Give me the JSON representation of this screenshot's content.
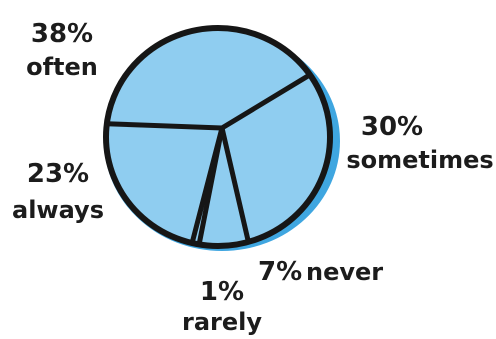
{
  "chart_data": {
    "type": "pie",
    "title": "",
    "slices": [
      {
        "label": "often",
        "value": 38,
        "value_label": "38%"
      },
      {
        "label": "sometimes",
        "value": 30,
        "value_label": "30%"
      },
      {
        "label": "never",
        "value": 7,
        "value_label": "7%"
      },
      {
        "label": "rarely",
        "value": 1,
        "value_label": "1%"
      },
      {
        "label": "always",
        "value": 23,
        "value_label": "23%"
      }
    ],
    "colors": {
      "fill": "#8fcdf0",
      "shadow": "#3fa6e0",
      "outline": "#161616"
    },
    "legend": "none"
  }
}
